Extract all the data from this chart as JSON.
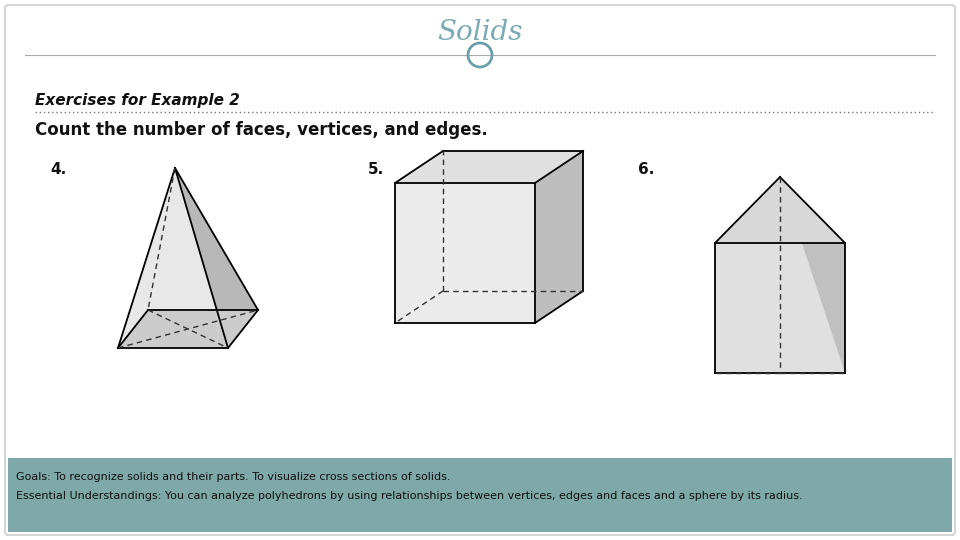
{
  "title": "Solids",
  "title_color": "#7baab3",
  "title_fontsize": 20,
  "bg_color": "#ffffff",
  "border_color": "#cccccc",
  "header_line_color": "#aaaaaa",
  "circle_color": "#6b9fa8",
  "section_title": "Exercises for Example 2",
  "section_subtitle": "Count the number of faces, vertices, and edges.",
  "footer_bg": "#7fa8a8",
  "footer_text1": "Goals: To recognize solids and their parts. To visualize cross sections of solids.",
  "footer_text2": "Essential Understandings: You can analyze polyhedrons by using relationships between vertices, edges and faces and a sphere by its radius.",
  "footer_text_color": "#111111",
  "label4": "4.",
  "label5": "5.",
  "label6": "6."
}
